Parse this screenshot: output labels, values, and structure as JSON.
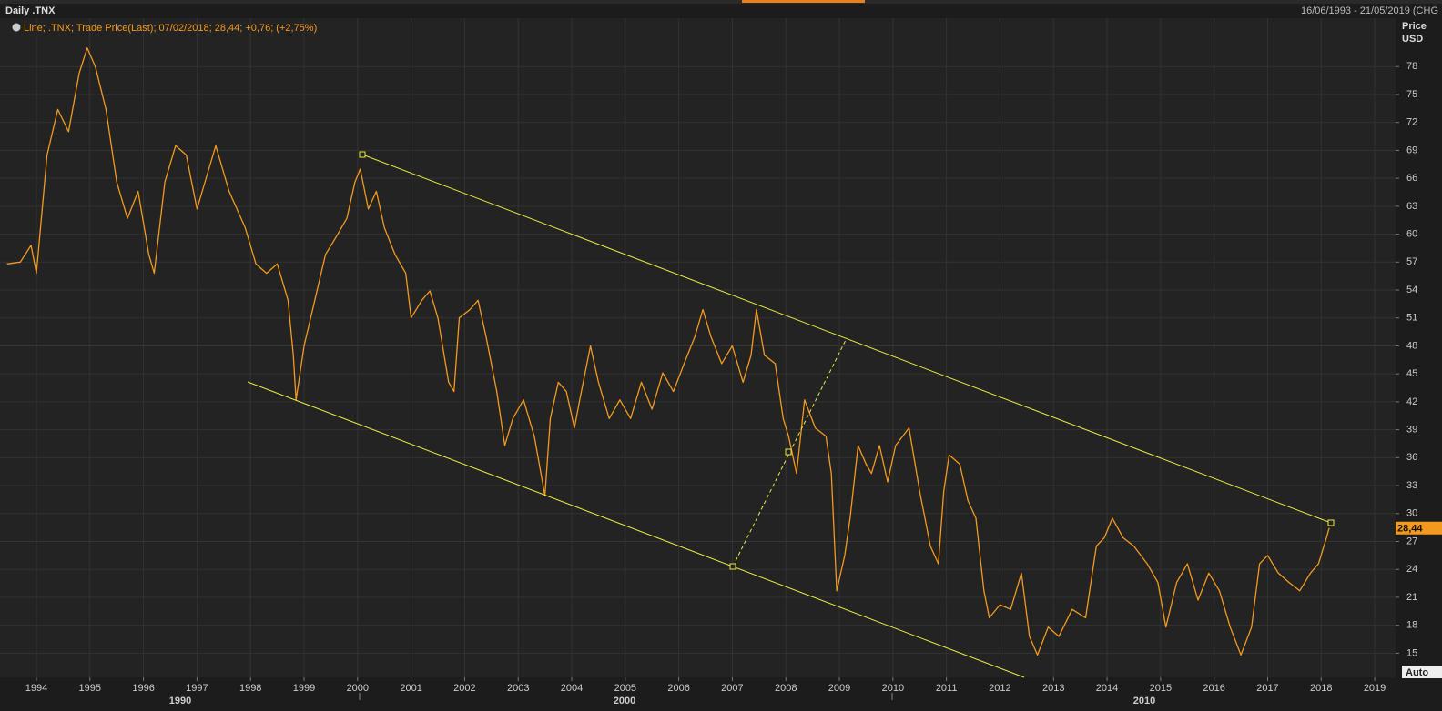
{
  "chart_data": {
    "type": "line",
    "header": "Daily .TNX",
    "range_text": "16/06/1993 - 21/05/2019 (CHG",
    "legend_text": "Line; .TNX; Trade Price(Last); 07/02/2018; 28,44; +0,76; (+2,75%)",
    "axis_title": "Price",
    "axis_unit": "USD",
    "auto_label": "Auto",
    "last_value": 28.44,
    "last_value_label": "28,44",
    "decade_labels": [
      "1990",
      "2000",
      "2010"
    ],
    "color": "#f39a1e",
    "grid": true,
    "xlim": [
      1993.32,
      2019.39
    ],
    "ylim": [
      12.4,
      83.2
    ],
    "xticks": [
      1994,
      1995,
      1996,
      1997,
      1998,
      1999,
      2000,
      2001,
      2002,
      2003,
      2004,
      2005,
      2006,
      2007,
      2008,
      2009,
      2010,
      2011,
      2012,
      2013,
      2014,
      2015,
      2016,
      2017,
      2018,
      2019
    ],
    "yticks": [
      15,
      18,
      21,
      24,
      27,
      30,
      33,
      36,
      39,
      42,
      45,
      48,
      51,
      54,
      57,
      60,
      63,
      66,
      69,
      72,
      75,
      78
    ],
    "x": [
      1993.45,
      1993.7,
      1993.9,
      1994.0,
      1994.2,
      1994.4,
      1994.6,
      1994.8,
      1994.95,
      1995.1,
      1995.3,
      1995.5,
      1995.7,
      1995.9,
      1996.1,
      1996.2,
      1996.4,
      1996.6,
      1996.8,
      1997.0,
      1997.2,
      1997.35,
      1997.6,
      1997.9,
      1998.1,
      1998.3,
      1998.5,
      1998.7,
      1998.8,
      1998.85,
      1999.0,
      1999.2,
      1999.4,
      1999.6,
      1999.8,
      1999.95,
      2000.05,
      2000.2,
      2000.35,
      2000.5,
      2000.7,
      2000.9,
      2001.0,
      2001.2,
      2001.35,
      2001.5,
      2001.7,
      2001.8,
      2001.9,
      2002.1,
      2002.25,
      2002.4,
      2002.6,
      2002.75,
      2002.9,
      2003.1,
      2003.3,
      2003.5,
      2003.6,
      2003.75,
      2003.9,
      2004.05,
      2004.15,
      2004.35,
      2004.5,
      2004.7,
      2004.9,
      2005.1,
      2005.3,
      2005.5,
      2005.7,
      2005.9,
      2006.1,
      2006.3,
      2006.45,
      2006.6,
      2006.8,
      2007.0,
      2007.2,
      2007.35,
      2007.45,
      2007.6,
      2007.8,
      2007.95,
      2008.05,
      2008.2,
      2008.35,
      2008.55,
      2008.75,
      2008.85,
      2008.95,
      2009.1,
      2009.2,
      2009.35,
      2009.5,
      2009.6,
      2009.75,
      2009.9,
      2010.05,
      2010.3,
      2010.5,
      2010.7,
      2010.85,
      2010.95,
      2011.05,
      2011.25,
      2011.4,
      2011.55,
      2011.7,
      2011.8,
      2012.0,
      2012.2,
      2012.4,
      2012.55,
      2012.7,
      2012.9,
      2013.1,
      2013.35,
      2013.6,
      2013.8,
      2013.95,
      2014.1,
      2014.3,
      2014.5,
      2014.75,
      2014.95,
      2015.1,
      2015.3,
      2015.5,
      2015.7,
      2015.9,
      2016.1,
      2016.3,
      2016.5,
      2016.7,
      2016.85,
      2017.0,
      2017.2,
      2017.4,
      2017.6,
      2017.8,
      2017.95,
      2018.1,
      2018.15
    ],
    "values": [
      56.8,
      57,
      58.8,
      55.8,
      68.5,
      73.4,
      71,
      77.3,
      80,
      78,
      73.4,
      65.6,
      61.7,
      64.6,
      57.8,
      55.8,
      65.6,
      69.5,
      68.5,
      62.7,
      66.6,
      69.5,
      64.6,
      60.7,
      56.8,
      55.8,
      56.8,
      52.9,
      47,
      42.2,
      48,
      52.9,
      57.8,
      59.7,
      61.7,
      65.6,
      67,
      62.7,
      64.6,
      60.7,
      57.8,
      55.8,
      51,
      52.9,
      53.9,
      51,
      44.1,
      43.1,
      51,
      51.9,
      52.9,
      49,
      43.1,
      37.3,
      40.2,
      42.2,
      38.3,
      31.9,
      40.2,
      44.1,
      43.1,
      39.2,
      42.2,
      48,
      44.1,
      40.2,
      42.2,
      40.2,
      44.1,
      41.2,
      45.1,
      43.1,
      46.1,
      49,
      51.9,
      49,
      46.1,
      48,
      44.1,
      47,
      51.9,
      47,
      46.1,
      40.2,
      38.3,
      34.3,
      42.2,
      39.2,
      38.3,
      34.3,
      21.7,
      25.5,
      29.5,
      37.3,
      35.3,
      34.3,
      37.3,
      33.4,
      37.3,
      39.2,
      32.4,
      26.5,
      24.6,
      32.4,
      36.3,
      35.3,
      31.4,
      29.5,
      21.7,
      18.8,
      20.2,
      19.7,
      23.6,
      16.8,
      14.8,
      17.8,
      16.8,
      19.7,
      18.8,
      26.5,
      27.4,
      29.5,
      27.4,
      26.5,
      24.6,
      22.6,
      17.8,
      22.6,
      24.6,
      20.7,
      23.6,
      21.7,
      17.8,
      14.8,
      17.8,
      24.6,
      25.5,
      23.6,
      22.6,
      21.7,
      23.6,
      24.6,
      27.4,
      28.44
    ]
  }
}
